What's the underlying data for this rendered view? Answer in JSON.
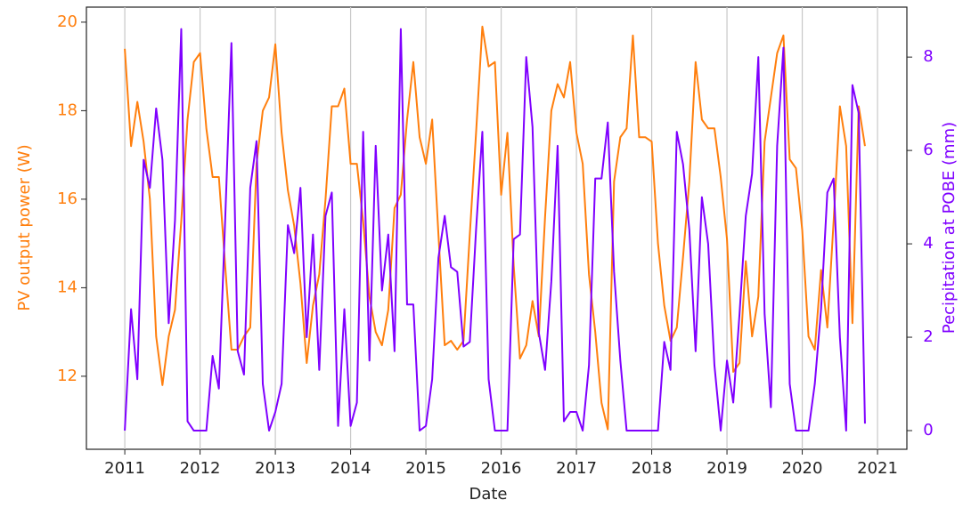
{
  "chart_data": {
    "type": "line",
    "x_label": "Date",
    "y_label": "PV output power (W)",
    "y2_label": "Pecipitation at POBE (mm)",
    "x": [
      "2011-01",
      "2011-02",
      "2011-03",
      "2011-04",
      "2011-05",
      "2011-06",
      "2011-07",
      "2011-08",
      "2011-09",
      "2011-10",
      "2011-11",
      "2011-12",
      "2012-01",
      "2012-02",
      "2012-03",
      "2012-04",
      "2012-05",
      "2012-06",
      "2012-07",
      "2012-08",
      "2012-09",
      "2012-10",
      "2012-11",
      "2012-12",
      "2013-01",
      "2013-02",
      "2013-03",
      "2013-04",
      "2013-05",
      "2013-06",
      "2013-07",
      "2013-08",
      "2013-09",
      "2013-10",
      "2013-11",
      "2013-12",
      "2014-01",
      "2014-02",
      "2014-03",
      "2014-04",
      "2014-05",
      "2014-06",
      "2014-07",
      "2014-08",
      "2014-09",
      "2014-10",
      "2014-11",
      "2014-12",
      "2015-01",
      "2015-02",
      "2015-03",
      "2015-04",
      "2015-05",
      "2015-06",
      "2015-07",
      "2015-08",
      "2015-09",
      "2015-10",
      "2015-11",
      "2015-12",
      "2016-01",
      "2016-02",
      "2016-03",
      "2016-04",
      "2016-05",
      "2016-06",
      "2016-07",
      "2016-08",
      "2016-09",
      "2016-10",
      "2016-11",
      "2016-12",
      "2017-01",
      "2017-02",
      "2017-03",
      "2017-04",
      "2017-05",
      "2017-06",
      "2017-07",
      "2017-08",
      "2017-09",
      "2017-10",
      "2017-11",
      "2017-12",
      "2018-01",
      "2018-02",
      "2018-03",
      "2018-04",
      "2018-05",
      "2018-06",
      "2018-07",
      "2018-08",
      "2018-09",
      "2018-10",
      "2018-11",
      "2018-12",
      "2019-01",
      "2019-02",
      "2019-03",
      "2019-04",
      "2019-05",
      "2019-06",
      "2019-07",
      "2019-08",
      "2019-09",
      "2019-10",
      "2019-11",
      "2019-12",
      "2020-01",
      "2020-02",
      "2020-03",
      "2020-04",
      "2020-05",
      "2020-06",
      "2020-07",
      "2020-08",
      "2020-09",
      "2020-10",
      "2020-11"
    ],
    "series": [
      {
        "name": "PV output power",
        "color": "#ff7f0e",
        "axis": "y",
        "values": [
          19.4,
          17.2,
          18.2,
          17.3,
          16.0,
          12.9,
          11.8,
          12.9,
          13.5,
          15.5,
          17.8,
          19.1,
          19.3,
          17.6,
          16.5,
          16.5,
          14.5,
          12.6,
          12.6,
          12.9,
          13.1,
          16.8,
          18.0,
          18.3,
          19.5,
          17.5,
          16.2,
          15.4,
          14.1,
          12.3,
          13.6,
          14.3,
          16.0,
          18.1,
          18.1,
          18.5,
          16.8,
          16.8,
          15.5,
          13.8,
          13.0,
          12.7,
          13.5,
          15.8,
          16.1,
          17.8,
          19.1,
          17.4,
          16.8,
          17.8,
          15.2,
          12.7,
          12.8,
          12.6,
          12.8,
          15.2,
          17.5,
          19.9,
          19.0,
          19.1,
          16.1,
          17.5,
          14.5,
          12.4,
          12.7,
          13.7,
          12.9,
          15.6,
          18.0,
          18.6,
          18.3,
          19.1,
          17.5,
          16.8,
          14.3,
          13.0,
          11.4,
          10.8,
          16.4,
          17.4,
          17.6,
          19.7,
          17.4,
          17.4,
          17.3,
          15.0,
          13.6,
          12.8,
          13.1,
          14.7,
          16.4,
          19.1,
          17.8,
          17.6,
          17.6,
          16.5,
          15.1,
          12.1,
          12.3,
          14.6,
          12.9,
          13.8,
          17.3,
          18.3,
          19.3,
          19.7,
          16.9,
          16.7,
          15.3,
          12.9,
          12.6,
          14.4,
          13.1,
          15.5,
          18.1,
          17.2,
          13.2,
          18.1,
          17.2
        ]
      },
      {
        "name": "Precipitation",
        "color": "#7f00ff",
        "axis": "y2",
        "values": [
          0,
          2.6,
          1.1,
          5.8,
          5.2,
          6.9,
          5.8,
          2.3,
          4.5,
          8.6,
          0.2,
          0,
          0,
          0,
          1.6,
          0.9,
          4.5,
          8.3,
          1.7,
          1.2,
          5.2,
          6.2,
          1.0,
          0,
          0.4,
          1.0,
          4.4,
          3.8,
          5.2,
          2.0,
          4.2,
          1.3,
          4.6,
          5.1,
          0.1,
          2.6,
          0.1,
          0.6,
          6.4,
          1.5,
          6.1,
          3.0,
          4.2,
          1.7,
          8.6,
          2.7,
          2.7,
          0,
          0.1,
          1.1,
          3.7,
          4.6,
          3.5,
          3.4,
          1.8,
          1.9,
          4.3,
          6.4,
          1.1,
          0,
          0,
          0,
          4.1,
          4.2,
          8.0,
          6.5,
          2.1,
          1.3,
          3.2,
          6.1,
          0.2,
          0.4,
          0.4,
          0,
          1.4,
          5.4,
          5.4,
          6.6,
          3.4,
          1.5,
          0,
          0,
          0,
          0,
          0,
          0,
          1.9,
          1.3,
          6.4,
          5.7,
          4.3,
          1.7,
          5.0,
          4.0,
          1.4,
          0,
          1.5,
          0.6,
          2.5,
          4.6,
          5.5,
          8.0,
          2.5,
          0.5,
          6.1,
          8.2,
          1.0,
          0,
          0,
          0,
          1.0,
          2.6,
          5.1,
          5.4,
          2.0,
          0,
          7.4,
          6.8,
          0.15
        ]
      }
    ],
    "xlim": [
      2010.49,
      2021.39
    ],
    "xticks": [
      2011,
      2012,
      2013,
      2014,
      2015,
      2016,
      2017,
      2018,
      2019,
      2020,
      2021
    ],
    "ylim": [
      10.35,
      20.34
    ],
    "yticks": [
      12,
      14,
      16,
      18,
      20
    ],
    "y2lim": [
      -0.4,
      9.07
    ],
    "y2ticks": [
      0,
      2,
      4,
      6,
      8
    ],
    "grid": "x"
  }
}
